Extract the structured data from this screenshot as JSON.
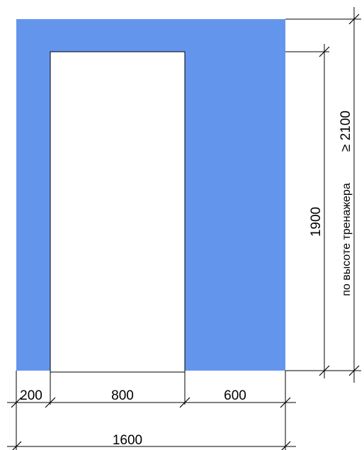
{
  "colors": {
    "wall_fill": "#6495ED",
    "opening_fill": "#ffffff",
    "line": "#000000"
  },
  "dimensions": {
    "left_segment": "200",
    "opening_width": "800",
    "right_segment": "600",
    "total_width": "1600",
    "opening_height": "1900",
    "total_height": "≥ 2100",
    "total_height_note": "по высоте тренажера"
  }
}
